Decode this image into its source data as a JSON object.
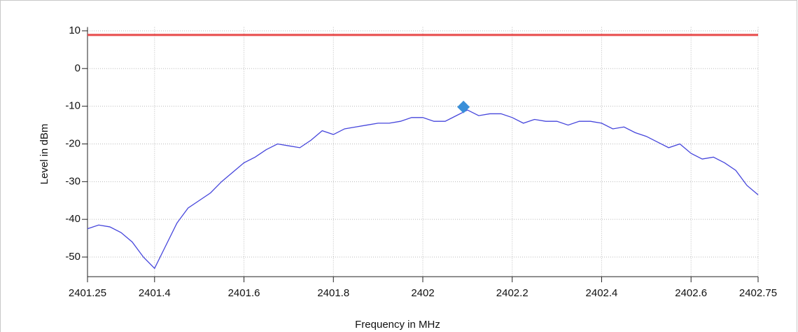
{
  "chart_data": {
    "type": "line",
    "xlabel": "Frequency in MHz",
    "ylabel": "Level in dBm",
    "xlim": [
      2401.25,
      2402.75
    ],
    "xticks": [
      2401.25,
      2401.4,
      2401.6,
      2401.8,
      2402,
      2402.2,
      2402.4,
      2402.6,
      2402.75
    ],
    "ylim": [
      -55.2,
      11
    ],
    "yticks": [
      10,
      0,
      -10,
      -20,
      -30,
      -40,
      -50
    ],
    "grid": true,
    "series": [
      {
        "color": "#4646dc",
        "x": [
          2401.25,
          2401.275,
          2401.3,
          2401.325,
          2401.35,
          2401.375,
          2401.4,
          2401.425,
          2401.45,
          2401.475,
          2401.5,
          2401.525,
          2401.55,
          2401.575,
          2401.6,
          2401.625,
          2401.65,
          2401.675,
          2401.7,
          2401.725,
          2401.75,
          2401.775,
          2401.8,
          2401.825,
          2401.85,
          2401.875,
          2401.9,
          2401.925,
          2401.95,
          2401.975,
          2402,
          2402.025,
          2402.05,
          2402.075,
          2402.1,
          2402.125,
          2402.15,
          2402.175,
          2402.2,
          2402.225,
          2402.25,
          2402.275,
          2402.3,
          2402.325,
          2402.35,
          2402.375,
          2402.4,
          2402.425,
          2402.45,
          2402.475,
          2402.5,
          2402.525,
          2402.55,
          2402.575,
          2402.6,
          2402.625,
          2402.65,
          2402.675,
          2402.7,
          2402.725,
          2402.75
        ],
        "values": [
          -42.5,
          -41.5,
          -42,
          -43.5,
          -46,
          -50,
          -53,
          -47,
          -41,
          -37,
          -35,
          -33,
          -30,
          -27.5,
          -25,
          -23.5,
          -21.5,
          -20,
          -20.5,
          -21,
          -19,
          -16.5,
          -17.5,
          -16,
          -15.5,
          -15,
          -14.5,
          -14.5,
          -14,
          -13,
          -13,
          -14,
          -14,
          -12.5,
          -11,
          -12.5,
          -12,
          -12,
          -13,
          -14.5,
          -13.5,
          -14,
          -14,
          -15,
          -14,
          -14,
          -14.5,
          -16,
          -15.5,
          -17,
          -18,
          -19.5,
          -21,
          -20,
          -22.5,
          -24,
          -23.5,
          -25,
          -27,
          -31,
          -33.5
        ]
      },
      {
        "color": "#e84a4a",
        "x": [
          2401.25,
          2402.75
        ],
        "values": [
          8.9,
          8.9
        ]
      }
    ],
    "markers": [
      {
        "x": 2402.091,
        "y": -10.2,
        "color": "#3a8fd8"
      }
    ]
  }
}
